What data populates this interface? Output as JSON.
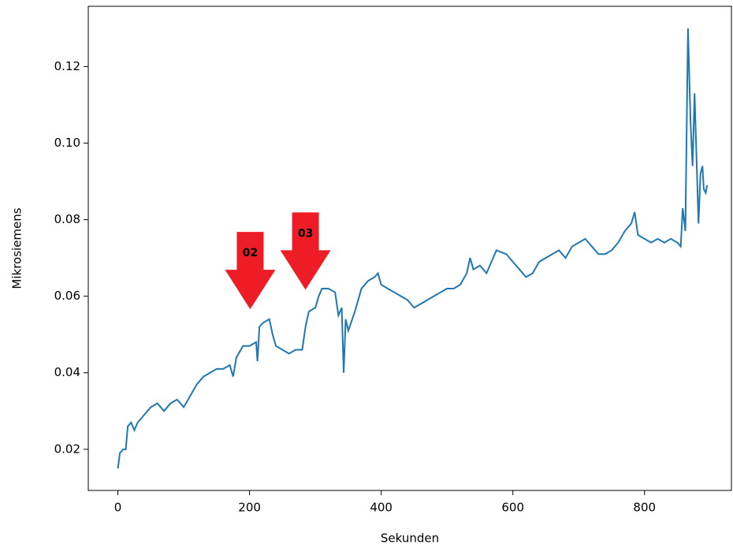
{
  "chart_data": {
    "type": "line",
    "xlabel": "Sekunden",
    "ylabel": "Mikrosiemens",
    "x": [
      0,
      3,
      8,
      12,
      15,
      20,
      25,
      30,
      40,
      50,
      60,
      70,
      80,
      90,
      100,
      110,
      120,
      130,
      140,
      150,
      160,
      170,
      175,
      180,
      190,
      200,
      210,
      212,
      215,
      220,
      230,
      235,
      240,
      250,
      260,
      270,
      280,
      285,
      290,
      300,
      305,
      310,
      320,
      330,
      335,
      340,
      343,
      346,
      350,
      360,
      370,
      380,
      390,
      395,
      400,
      410,
      420,
      430,
      440,
      450,
      460,
      470,
      480,
      490,
      500,
      510,
      520,
      530,
      535,
      540,
      550,
      560,
      570,
      575,
      590,
      600,
      610,
      620,
      630,
      640,
      650,
      660,
      670,
      680,
      690,
      700,
      710,
      720,
      730,
      740,
      750,
      760,
      770,
      780,
      785,
      790,
      800,
      810,
      820,
      830,
      840,
      850,
      855,
      858,
      862,
      866,
      870,
      873,
      876,
      879,
      882,
      885,
      888,
      890,
      893,
      895
    ],
    "values": [
      0.015,
      0.019,
      0.02,
      0.02,
      0.026,
      0.027,
      0.025,
      0.027,
      0.029,
      0.031,
      0.032,
      0.03,
      0.032,
      0.033,
      0.031,
      0.034,
      0.037,
      0.039,
      0.04,
      0.041,
      0.041,
      0.042,
      0.039,
      0.044,
      0.047,
      0.047,
      0.048,
      0.043,
      0.052,
      0.053,
      0.054,
      0.05,
      0.047,
      0.046,
      0.045,
      0.046,
      0.046,
      0.052,
      0.056,
      0.057,
      0.06,
      0.062,
      0.062,
      0.061,
      0.055,
      0.057,
      0.04,
      0.054,
      0.051,
      0.056,
      0.062,
      0.064,
      0.065,
      0.066,
      0.063,
      0.062,
      0.061,
      0.06,
      0.059,
      0.057,
      0.058,
      0.059,
      0.06,
      0.061,
      0.062,
      0.062,
      0.063,
      0.066,
      0.07,
      0.067,
      0.068,
      0.066,
      0.07,
      0.072,
      0.071,
      0.069,
      0.067,
      0.065,
      0.066,
      0.069,
      0.07,
      0.071,
      0.072,
      0.07,
      0.073,
      0.074,
      0.075,
      0.073,
      0.071,
      0.071,
      0.072,
      0.074,
      0.077,
      0.079,
      0.082,
      0.076,
      0.075,
      0.074,
      0.075,
      0.074,
      0.075,
      0.074,
      0.073,
      0.083,
      0.077,
      0.13,
      0.105,
      0.094,
      0.113,
      0.096,
      0.079,
      0.092,
      0.094,
      0.088,
      0.087,
      0.089
    ],
    "color": "#1f77b4",
    "xlim": [
      -45,
      932
    ],
    "ylim": [
      0.00925,
      0.13575
    ],
    "xticks": [
      0,
      200,
      400,
      600,
      800
    ],
    "yticks": [
      0.02,
      0.04,
      0.06,
      0.08,
      {
        "value": 0.1,
        "label": "0.10"
      },
      0.12
    ],
    "annotations": [
      {
        "text": "02",
        "x": 201,
        "y": 0.0566,
        "color": "#ee1c25"
      },
      {
        "text": "03",
        "x": 285,
        "y": 0.0617,
        "color": "#ee1c25"
      }
    ]
  }
}
